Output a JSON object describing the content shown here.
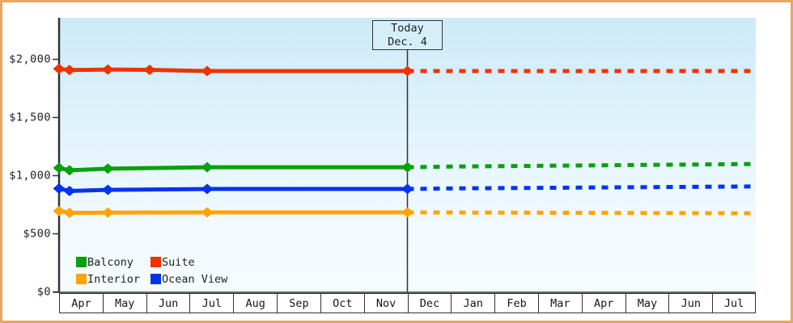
{
  "annotation": {
    "line1": "Today",
    "line2": "Dec. 4"
  },
  "colors": {
    "frame_border": "#E7A765",
    "axis": "#2F3333",
    "plot_top": "#CCEAF9",
    "plot_bottom": "#F6FCFE",
    "today_box_fill": "#D5EFFA",
    "text": "#222222",
    "balcony": "#0AA00A",
    "suite": "#EE3300",
    "interior": "#FFA408",
    "ocean_view": "#0433F0"
  },
  "y_axis": {
    "ticks": [
      "$0",
      "$500",
      "$1,000",
      "$1,500",
      "$2,000"
    ],
    "values": [
      0,
      500,
      1000,
      1500,
      2000
    ],
    "min": 0,
    "max": 2000
  },
  "x_axis": {
    "months": [
      "Apr",
      "May",
      "Jun",
      "Jul",
      "Aug",
      "Sep",
      "Oct",
      "Nov",
      "Dec",
      "Jan",
      "Feb",
      "Mar",
      "Apr",
      "May",
      "Jun",
      "Jul"
    ]
  },
  "legend": [
    {
      "label": "Balcony",
      "color_key": "balcony"
    },
    {
      "label": "Suite",
      "color_key": "suite"
    },
    {
      "label": "Interior",
      "color_key": "interior"
    },
    {
      "label": "Ocean View",
      "color_key": "ocean_view"
    }
  ],
  "chart_data": {
    "type": "line",
    "title": "",
    "values_unit": "USD",
    "x_unit": "months since Apr 1 (0 = Apr, 8 = Dec/today, 16 = following Jul end)",
    "x_range": [
      0,
      16
    ],
    "ylim": [
      0,
      2000
    ],
    "today_x": 8,
    "legend_position": "bottom-left inside plot",
    "grid": false,
    "notes": "Solid lines = observed price history with diamond markers; dotted lines = forecast after Today (Dec. 4).",
    "series": [
      {
        "name": "Suite",
        "color_key": "suite",
        "history": [
          [
            0,
            1918
          ],
          [
            0.24,
            1908
          ],
          [
            1.12,
            1912
          ],
          [
            2.08,
            1910
          ],
          [
            3.4,
            1899
          ],
          [
            8,
            1899
          ]
        ],
        "forecast": [
          [
            8,
            1899
          ],
          [
            16,
            1899
          ]
        ]
      },
      {
        "name": "Balcony",
        "color_key": "balcony",
        "history": [
          [
            0,
            1066
          ],
          [
            0.24,
            1046
          ],
          [
            1.12,
            1060
          ],
          [
            3.4,
            1072
          ],
          [
            8,
            1072
          ]
        ],
        "forecast": [
          [
            8,
            1072
          ],
          [
            9,
            1078
          ],
          [
            16,
            1100
          ]
        ]
      },
      {
        "name": "Ocean View",
        "color_key": "ocean_view",
        "history": [
          [
            0,
            889
          ],
          [
            0.24,
            868
          ],
          [
            1.12,
            878
          ],
          [
            3.4,
            885
          ],
          [
            8,
            885
          ]
        ],
        "forecast": [
          [
            8,
            885
          ],
          [
            9,
            890
          ],
          [
            16,
            907
          ]
        ]
      },
      {
        "name": "Interior",
        "color_key": "interior",
        "history": [
          [
            0,
            695
          ],
          [
            0.24,
            680
          ],
          [
            1.12,
            682
          ],
          [
            3.4,
            684
          ],
          [
            8,
            684
          ]
        ],
        "forecast": [
          [
            8,
            684
          ],
          [
            16,
            676
          ]
        ]
      }
    ]
  }
}
